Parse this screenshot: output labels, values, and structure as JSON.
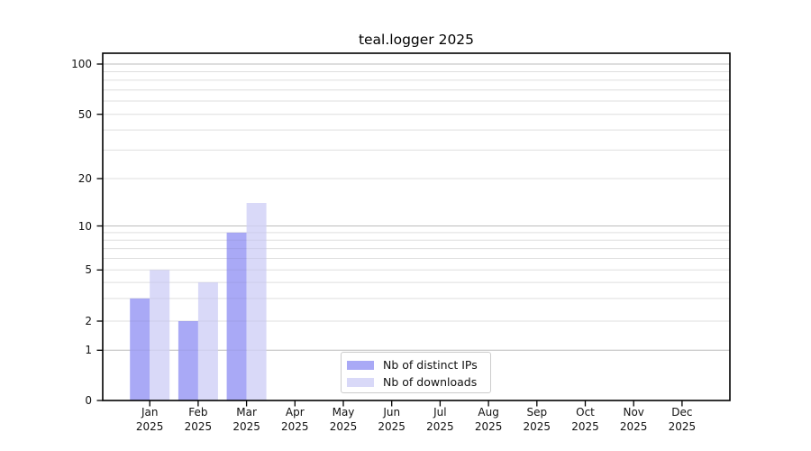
{
  "chart_data": {
    "type": "bar",
    "title": "teal.logger 2025",
    "categories": [
      "Jan 2025",
      "Feb 2025",
      "Mar 2025",
      "Apr 2025",
      "May 2025",
      "Jun 2025",
      "Jul 2025",
      "Aug 2025",
      "Sep 2025",
      "Oct 2025",
      "Nov 2025",
      "Dec 2025"
    ],
    "months": [
      "Jan",
      "Feb",
      "Mar",
      "Apr",
      "May",
      "Jun",
      "Jul",
      "Aug",
      "Sep",
      "Oct",
      "Nov",
      "Dec"
    ],
    "year": "2025",
    "series": [
      {
        "name": "Nb of distinct IPs",
        "color": "#a9a9f6",
        "values": [
          3,
          2,
          9,
          0,
          0,
          0,
          0,
          0,
          0,
          0,
          0,
          0
        ]
      },
      {
        "name": "Nb of downloads",
        "color": "#d9d9f8",
        "values": [
          5,
          4,
          14,
          0,
          0,
          0,
          0,
          0,
          0,
          0,
          0,
          0
        ]
      }
    ],
    "xlabel": "",
    "ylabel": "",
    "yscale": "log-like",
    "y_ticks": [
      0,
      1,
      2,
      5,
      10,
      20,
      50,
      100
    ],
    "y_tick_labels": [
      "0",
      "1",
      "2",
      "5",
      "10",
      "20",
      "50",
      "100"
    ],
    "ylim": [
      0,
      116
    ],
    "grid": "horizontal major and log-minor gridlines",
    "legend_position": "lower center inside plot",
    "colors": {
      "major_gridline": "#c8c8c8",
      "minor_gridline": "#ececec",
      "spine": "#000000",
      "background": "#ffffff"
    }
  }
}
